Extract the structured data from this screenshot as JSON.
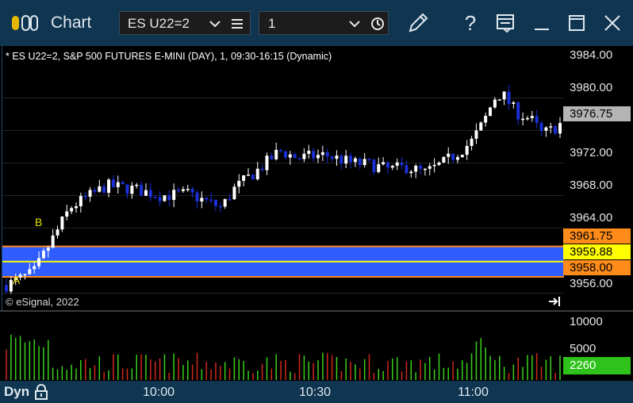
{
  "app": {
    "title": "Chart",
    "symbol": "ES U22=2",
    "interval": "1"
  },
  "chart": {
    "header": "* ES U22=2, S&P 500 FUTURES E-MINI (DAY), 1, 09:30-16:15 (Dynamic)",
    "copyright": "© eSignal, 2022",
    "markers": [
      "A",
      "B"
    ],
    "last_price_tag": "3976.75",
    "band_tags": {
      "upper": "3961.75",
      "middle": "3959.88",
      "lower": "3958.00"
    },
    "colors": {
      "up_candle": "#ffffff",
      "down_candle": "#1a2fd6",
      "band_fill": "#2f5cff",
      "band_edge": "#ff8c1a",
      "middle_line": "#ffff00",
      "vol_up": "#3ad11a",
      "vol_down": "#d0281a",
      "last_tag_bg": "#b4b4b4"
    }
  },
  "chart_data": {
    "type": "candlestick",
    "ylim": [
      3954,
      3986
    ],
    "yticks": [
      "3984.00",
      "3980.00",
      "3976.00",
      "3972.00",
      "3968.00",
      "3964.00",
      "3960.00",
      "3956.00"
    ],
    "x": [
      "10:00",
      "10:30",
      "11:00"
    ],
    "volume": {
      "ylim": [
        0,
        12000
      ],
      "ticks": [
        "10000",
        "5000"
      ],
      "last_value": "2260"
    }
  },
  "timebar": {
    "mode": "Dyn",
    "labels": [
      "10:00",
      "10:30",
      "11:00"
    ]
  }
}
